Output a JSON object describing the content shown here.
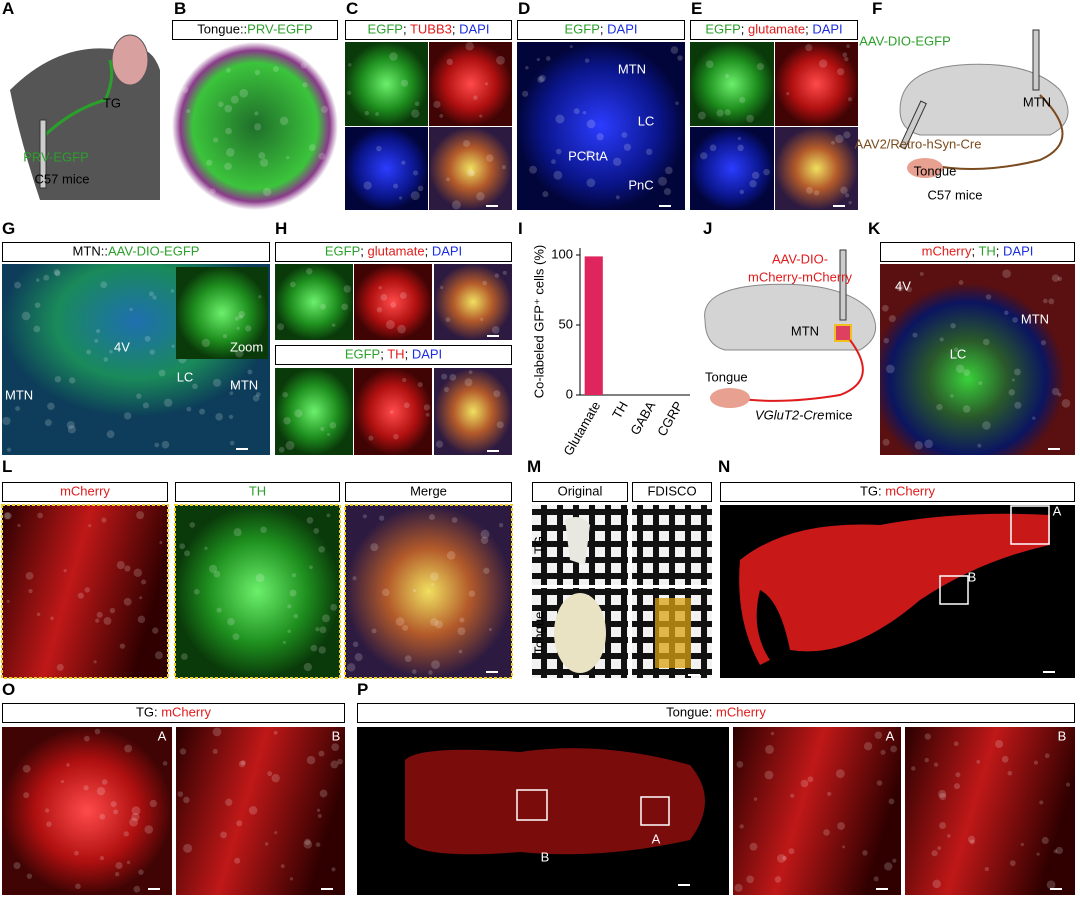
{
  "panels": [
    {
      "letter": "A",
      "labels": [
        "TG",
        "PRV-EGFP",
        "C57 mice"
      ]
    },
    {
      "letter": "B",
      "headers": [
        [
          {
            "t": "Tongue::",
            "c": "#000000"
          },
          {
            "t": "PRV-EGFP",
            "c": "#2aa02a"
          }
        ]
      ]
    },
    {
      "letter": "C",
      "headers": [
        [
          {
            "t": "EGFP",
            "c": "#2aa02a"
          },
          {
            "t": "; ",
            "c": "#000000"
          },
          {
            "t": "TUBB3",
            "c": "#e01b1b"
          },
          {
            "t": "; ",
            "c": "#000000"
          },
          {
            "t": "DAPI",
            "c": "#1b2ee0"
          }
        ]
      ]
    },
    {
      "letter": "D",
      "headers": [
        [
          {
            "t": "EGFP",
            "c": "#2aa02a"
          },
          {
            "t": "; ",
            "c": "#000000"
          },
          {
            "t": "DAPI",
            "c": "#1b2ee0"
          }
        ]
      ],
      "labels": [
        "MTN",
        "LC",
        "PCRtA",
        "PnC"
      ]
    },
    {
      "letter": "E",
      "headers": [
        [
          {
            "t": "EGFP",
            "c": "#2aa02a"
          },
          {
            "t": "; ",
            "c": "#000000"
          },
          {
            "t": "glutamate",
            "c": "#e01b1b"
          },
          {
            "t": "; ",
            "c": "#000000"
          },
          {
            "t": "DAPI",
            "c": "#1b2ee0"
          }
        ]
      ]
    },
    {
      "letter": "F",
      "labels": [
        "AAV-DIO-EGFP",
        "MTN",
        "AAV2/Retro-hSyn-Cre",
        "Tongue",
        "C57 mice"
      ]
    },
    {
      "letter": "G",
      "headers": [
        [
          {
            "t": "MTN::",
            "c": "#000000"
          },
          {
            "t": "AAV-DIO-EGFP",
            "c": "#2aa02a"
          }
        ]
      ],
      "labels": [
        "4V",
        "LC",
        "MTN",
        "MTN",
        "Zoom"
      ]
    },
    {
      "letter": "H",
      "headers": [
        [
          {
            "t": "EGFP",
            "c": "#2aa02a"
          },
          {
            "t": "; ",
            "c": "#000000"
          },
          {
            "t": "glutamate",
            "c": "#e01b1b"
          },
          {
            "t": "; ",
            "c": "#000000"
          },
          {
            "t": "DAPI",
            "c": "#1b2ee0"
          }
        ],
        [
          {
            "t": "EGFP",
            "c": "#2aa02a"
          },
          {
            "t": "; ",
            "c": "#000000"
          },
          {
            "t": "TH",
            "c": "#e01b1b"
          },
          {
            "t": "; ",
            "c": "#000000"
          },
          {
            "t": "DAPI",
            "c": "#1b2ee0"
          }
        ]
      ]
    },
    {
      "letter": "I"
    },
    {
      "letter": "J",
      "labels": [
        "AAV-DIO-",
        "mCherry-mCherry",
        "MTN",
        "Tongue",
        "VGluT2-Cre",
        "mice"
      ]
    },
    {
      "letter": "K",
      "headers": [
        [
          {
            "t": "mCherry",
            "c": "#e01b1b"
          },
          {
            "t": "; ",
            "c": "#000000"
          },
          {
            "t": "TH",
            "c": "#2aa02a"
          },
          {
            "t": "; ",
            "c": "#000000"
          },
          {
            "t": "DAPI",
            "c": "#1b2ee0"
          }
        ]
      ],
      "labels": [
        "4V",
        "MTN",
        "LC"
      ]
    },
    {
      "letter": "L",
      "headers": [
        [
          {
            "t": "mCherry",
            "c": "#e01b1b"
          }
        ],
        [
          {
            "t": "TH",
            "c": "#2aa02a"
          }
        ],
        [
          {
            "t": "Merge",
            "c": "#000000"
          }
        ]
      ]
    },
    {
      "letter": "M",
      "headers": [
        [
          {
            "t": "Original",
            "c": "#000000"
          }
        ],
        [
          {
            "t": "FDISCO",
            "c": "#000000"
          }
        ]
      ],
      "labels": [
        "TG",
        "Tongue"
      ]
    },
    {
      "letter": "N",
      "headers": [
        [
          {
            "t": "TG: ",
            "c": "#000000"
          },
          {
            "t": "mCherry",
            "c": "#e01b1b"
          }
        ]
      ],
      "labels": [
        "A",
        "B"
      ]
    },
    {
      "letter": "O",
      "headers": [
        [
          {
            "t": "TG: ",
            "c": "#000000"
          },
          {
            "t": "mCherry",
            "c": "#e01b1b"
          }
        ]
      ],
      "labels": [
        "A",
        "B"
      ]
    },
    {
      "letter": "P",
      "headers": [
        [
          {
            "t": "Tongue: ",
            "c": "#000000"
          },
          {
            "t": "mCherry",
            "c": "#e01b1b"
          }
        ]
      ],
      "labels": [
        "B",
        "A",
        "A",
        "B"
      ]
    }
  ],
  "chart_data": {
    "type": "bar",
    "y_label": "Co-labeled GFP⁺ cells (%)",
    "categories": [
      "Glutamate",
      "TH",
      "GABA",
      "CGRP"
    ],
    "values": [
      99,
      0,
      0,
      0
    ],
    "color": "#e0245e",
    "ylim": [
      0,
      105
    ],
    "yticks": [
      0,
      50,
      100
    ]
  }
}
